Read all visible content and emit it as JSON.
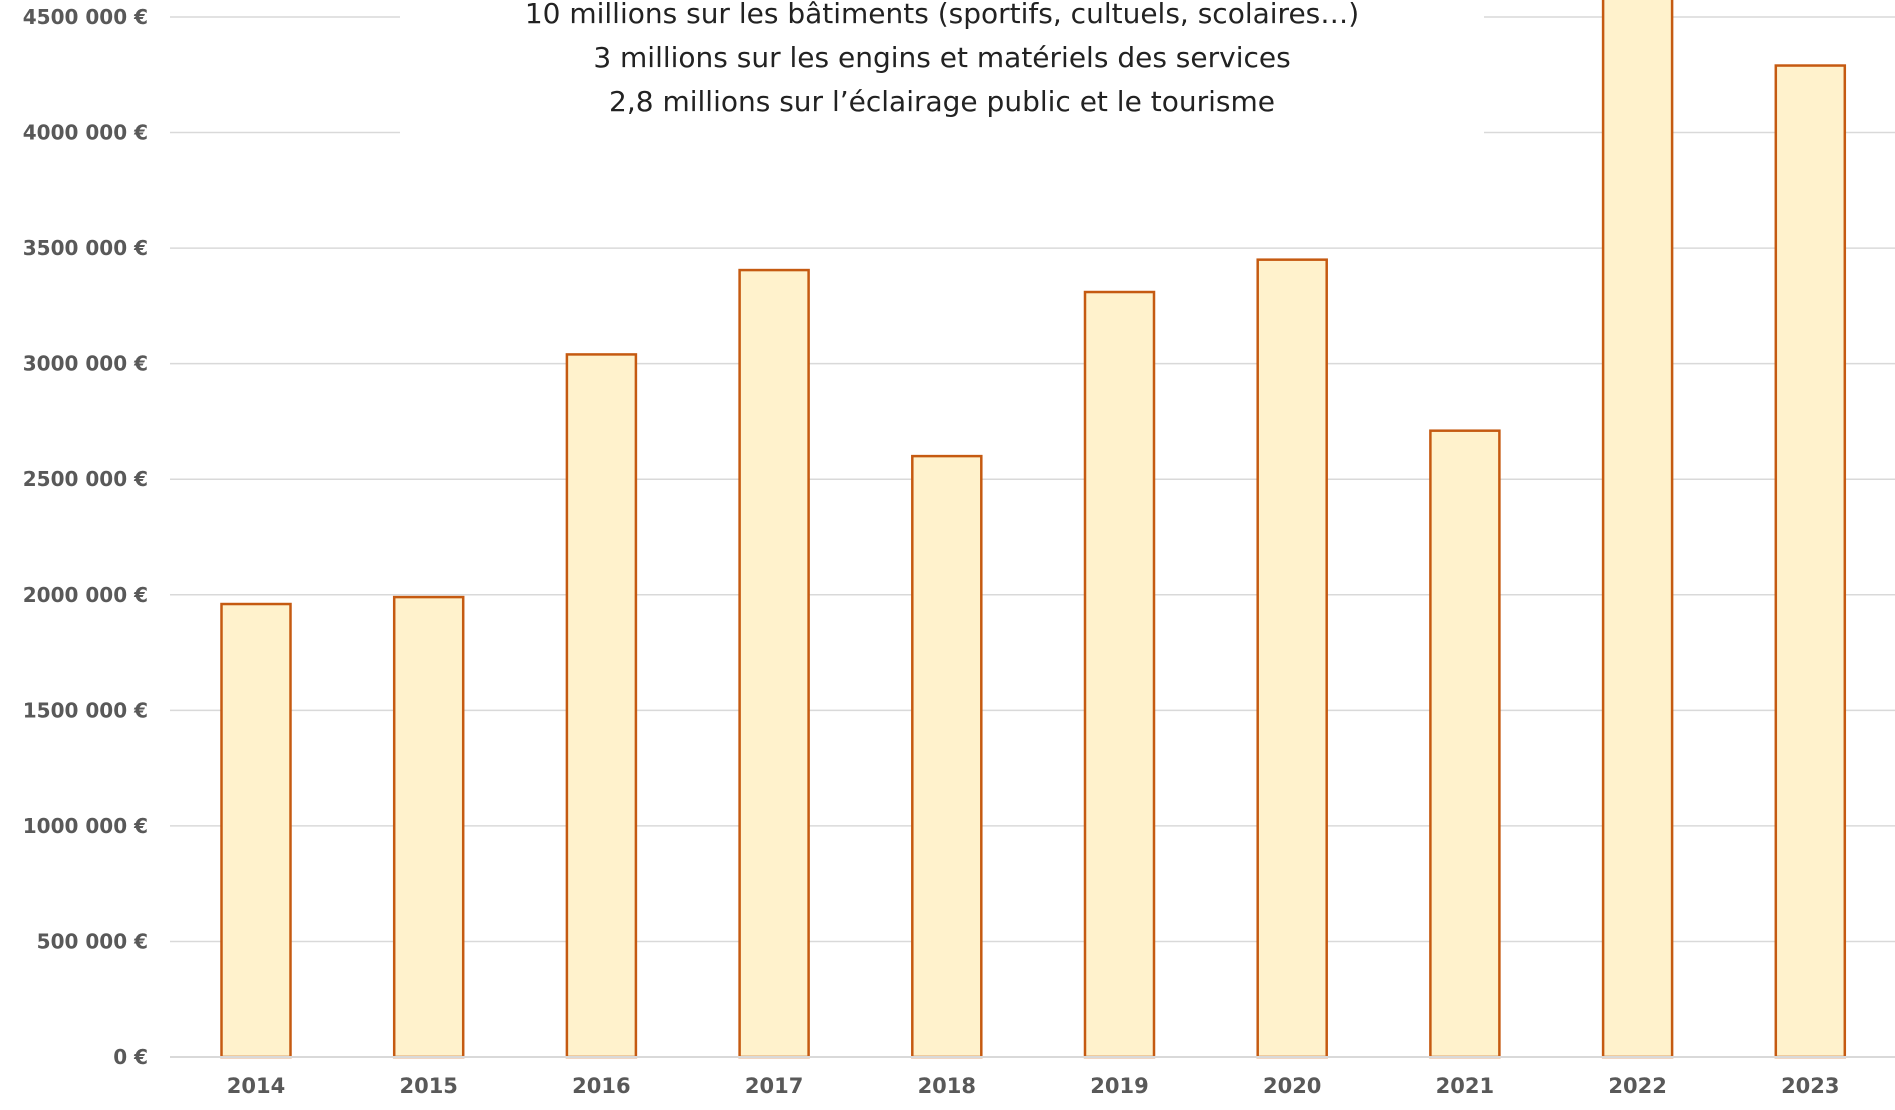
{
  "chart_data": {
    "type": "bar",
    "categories": [
      "2014",
      "2015",
      "2016",
      "2017",
      "2018",
      "2019",
      "2020",
      "2021",
      "2022",
      "2023"
    ],
    "values": [
      1960000,
      1990000,
      3040000,
      3405000,
      2600000,
      3310000,
      3450000,
      2710000,
      4700000,
      4290000
    ],
    "ylim": [
      0,
      4500000
    ],
    "y_ticks": [
      0,
      500000,
      1000000,
      1500000,
      2000000,
      2500000,
      3000000,
      3500000,
      4000000,
      4500000
    ],
    "y_tick_labels": [
      "0 €",
      "500 000 €",
      "1000 000 €",
      "1500 000 €",
      "2000 000 €",
      "2500 000 €",
      "3000 000 €",
      "3500 000 €",
      "4000 000 €",
      "4500 000 €"
    ],
    "grid": true,
    "title": "",
    "xlabel": "",
    "ylabel": "",
    "colors": {
      "bar_fill": "#FFF2CC",
      "bar_stroke": "#C55A11",
      "grid": "#D9D9D9",
      "axis_text": "#595959"
    }
  },
  "annotation": {
    "lines": [
      "10 millions sur les bâtiments (sportifs, cultuels, scolaires…)",
      "3 millions sur les engins et matériels des services",
      "2,8 millions sur l’éclairage public et le tourisme"
    ]
  }
}
